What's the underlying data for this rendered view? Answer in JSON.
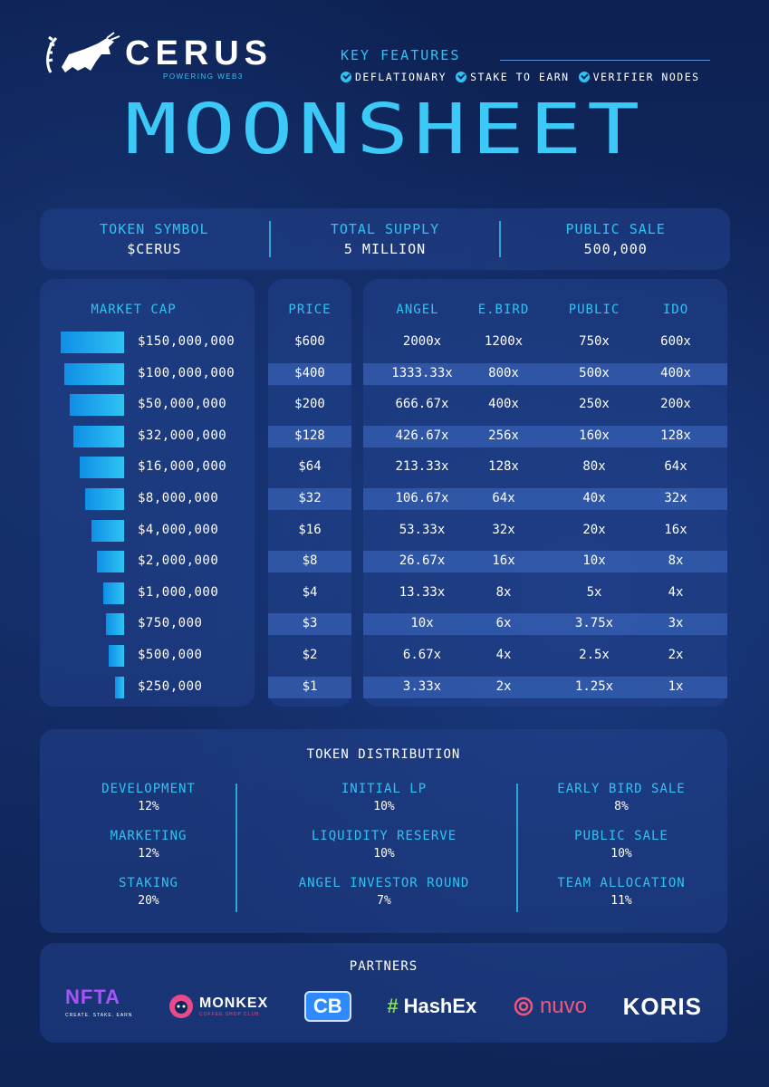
{
  "brand": {
    "name": "CERUS",
    "tagline": "POWERING WEB3"
  },
  "key_features": {
    "title": "KEY FEATURES",
    "items": [
      "DEFLATIONARY",
      "STAKE TO EARN",
      "VERIFIER NODES"
    ]
  },
  "headline": "MOONSHEET",
  "token_info": [
    {
      "label": "TOKEN SYMBOL",
      "value": "$CERUS"
    },
    {
      "label": "TOTAL SUPPLY",
      "value": "5 MILLION"
    },
    {
      "label": "PUBLIC SALE",
      "value": "500,000"
    }
  ],
  "colors": {
    "accent": "#2fc3f3",
    "background": "#10265a",
    "panel": "#22428c"
  },
  "chart_data": {
    "type": "table",
    "columns": [
      "MARKET CAP",
      "PRICE",
      "ANGEL",
      "E.BIRD",
      "PUBLIC",
      "IDO"
    ],
    "rows": [
      {
        "market_cap": "$150,000,000",
        "mc_value": 150000000,
        "price": "$600",
        "angel": "2000x",
        "ebird": "1200x",
        "public": "750x",
        "ido": "600x"
      },
      {
        "market_cap": "$100,000,000",
        "mc_value": 100000000,
        "price": "$400",
        "angel": "1333.33x",
        "ebird": "800x",
        "public": "500x",
        "ido": "400x"
      },
      {
        "market_cap": "$50,000,000",
        "mc_value": 50000000,
        "price": "$200",
        "angel": "666.67x",
        "ebird": "400x",
        "public": "250x",
        "ido": "200x"
      },
      {
        "market_cap": "$32,000,000",
        "mc_value": 32000000,
        "price": "$128",
        "angel": "426.67x",
        "ebird": "256x",
        "public": "160x",
        "ido": "128x"
      },
      {
        "market_cap": "$16,000,000",
        "mc_value": 16000000,
        "price": "$64",
        "angel": "213.33x",
        "ebird": "128x",
        "public": "80x",
        "ido": "64x"
      },
      {
        "market_cap": "$8,000,000",
        "mc_value": 8000000,
        "price": "$32",
        "angel": "106.67x",
        "ebird": "64x",
        "public": "40x",
        "ido": "32x"
      },
      {
        "market_cap": "$4,000,000",
        "mc_value": 4000000,
        "price": "$16",
        "angel": "53.33x",
        "ebird": "32x",
        "public": "20x",
        "ido": "16x"
      },
      {
        "market_cap": "$2,000,000",
        "mc_value": 2000000,
        "price": "$8",
        "angel": "26.67x",
        "ebird": "16x",
        "public": "10x",
        "ido": "8x"
      },
      {
        "market_cap": "$1,000,000",
        "mc_value": 1000000,
        "price": "$4",
        "angel": "13.33x",
        "ebird": "8x",
        "public": "5x",
        "ido": "4x"
      },
      {
        "market_cap": "$750,000",
        "mc_value": 750000,
        "price": "$3",
        "angel": "10x",
        "ebird": "6x",
        "public": "3.75x",
        "ido": "3x"
      },
      {
        "market_cap": "$500,000",
        "mc_value": 500000,
        "price": "$2",
        "angel": "6.67x",
        "ebird": "4x",
        "public": "2.5x",
        "ido": "2x"
      },
      {
        "market_cap": "$250,000",
        "mc_value": 250000,
        "price": "$1",
        "angel": "3.33x",
        "ebird": "2x",
        "public": "1.25x",
        "ido": "1x"
      }
    ]
  },
  "distribution": {
    "title": "TOKEN DISTRIBUTION",
    "columns": [
      [
        {
          "label": "DEVELOPMENT",
          "value": "12%"
        },
        {
          "label": "MARKETING",
          "value": "12%"
        },
        {
          "label": "STAKING",
          "value": "20%"
        }
      ],
      [
        {
          "label": "INITIAL LP",
          "value": "10%"
        },
        {
          "label": "LIQUIDITY RESERVE",
          "value": "10%"
        },
        {
          "label": "ANGEL INVESTOR ROUND",
          "value": "7%"
        }
      ],
      [
        {
          "label": "EARLY BIRD SALE",
          "value": "8%"
        },
        {
          "label": "PUBLIC SALE",
          "value": "10%"
        },
        {
          "label": "TEAM ALLOCATION",
          "value": "11%"
        }
      ]
    ]
  },
  "partners": {
    "title": "PARTNERS",
    "logos": [
      {
        "name": "NFTA",
        "sub": "CREATE. STAKE. EARN"
      },
      {
        "name": "MONKEX",
        "sub": "COFFEE SHOP CLUB"
      },
      {
        "name": "CB"
      },
      {
        "name": "HashEx",
        "prefix": "#"
      },
      {
        "name": "nuvo"
      },
      {
        "name": "KORIS"
      }
    ]
  }
}
